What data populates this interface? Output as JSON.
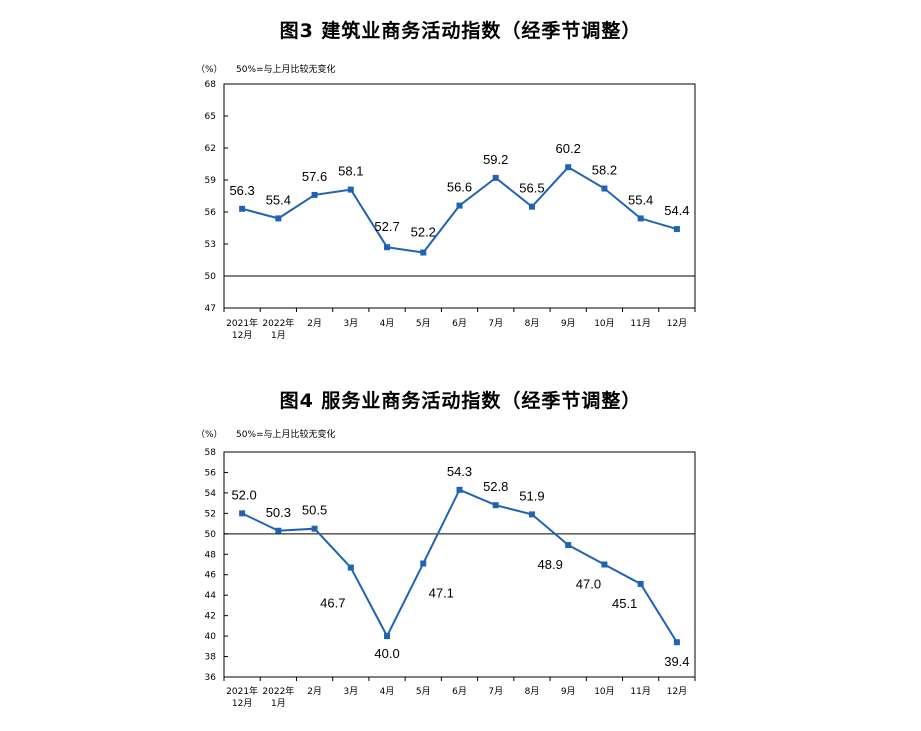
{
  "chart_data": [
    {
      "type": "line",
      "title": "图3  建筑业商务活动指数（经季节调整）",
      "unit_label": "（%）",
      "note": "50%=与上月比较无变化",
      "categories": [
        [
          "2021年",
          "12月"
        ],
        [
          "2022年",
          "1月"
        ],
        [
          "2月"
        ],
        [
          "3月"
        ],
        [
          "4月"
        ],
        [
          "5月"
        ],
        [
          "6月"
        ],
        [
          "7月"
        ],
        [
          "8月"
        ],
        [
          "9月"
        ],
        [
          "10月"
        ],
        [
          "11月"
        ],
        [
          "12月"
        ]
      ],
      "series": [
        {
          "values": [
            56.3,
            55.4,
            57.6,
            58.1,
            52.7,
            52.2,
            56.6,
            59.2,
            56.5,
            60.2,
            58.2,
            55.4,
            54.4
          ],
          "labels": [
            "56.3",
            "55.4",
            "57.6",
            "58.1",
            "52.7",
            "52.2",
            "56.6",
            "59.2",
            "56.5",
            "60.2",
            "58.2",
            "55.4",
            "54.4"
          ],
          "color": "#1f64b4"
        }
      ],
      "ylim": [
        47,
        68
      ],
      "yticks": [
        47,
        50,
        53,
        56,
        59,
        62,
        65,
        68
      ],
      "reference_line": 50,
      "grid": false
    },
    {
      "type": "line",
      "title": "图4  服务业商务活动指数（经季节调整）",
      "unit_label": "（%）",
      "note": "50%=与上月比较无变化",
      "categories": [
        [
          "2021年",
          "12月"
        ],
        [
          "2022年",
          "1月"
        ],
        [
          "2月"
        ],
        [
          "3月"
        ],
        [
          "4月"
        ],
        [
          "5月"
        ],
        [
          "6月"
        ],
        [
          "7月"
        ],
        [
          "8月"
        ],
        [
          "9月"
        ],
        [
          "10月"
        ],
        [
          "11月"
        ],
        [
          "12月"
        ]
      ],
      "series": [
        {
          "values": [
            52.0,
            50.3,
            50.5,
            46.7,
            40.0,
            47.1,
            54.3,
            52.8,
            51.9,
            48.9,
            47.0,
            45.1,
            39.4
          ],
          "labels": [
            "52.0",
            "50.3",
            "50.5",
            "46.7",
            "40.0",
            "47.1",
            "54.3",
            "52.8",
            "51.9",
            "48.9",
            "47.0",
            "45.1",
            "39.4"
          ],
          "color": "#1f64b4"
        }
      ],
      "ylim": [
        36,
        58
      ],
      "yticks": [
        36,
        38,
        40,
        42,
        44,
        46,
        48,
        50,
        52,
        54,
        56,
        58
      ],
      "reference_line": 50,
      "grid": false
    }
  ]
}
